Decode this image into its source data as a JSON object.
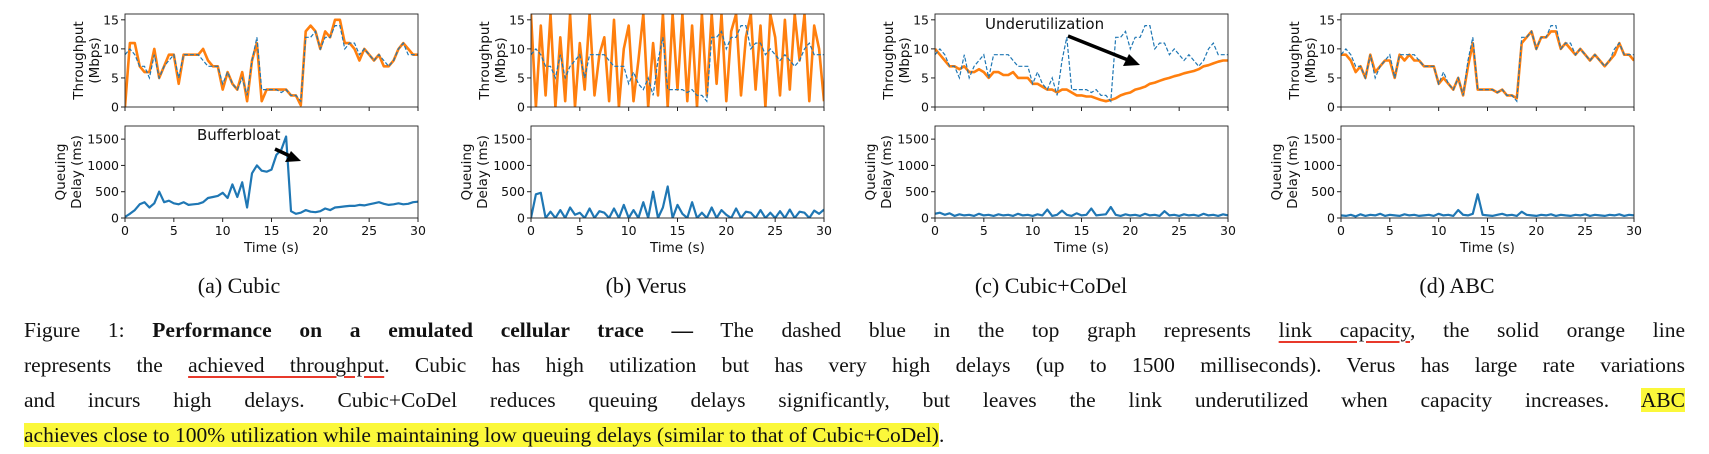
{
  "chart_data": {
    "type": "line",
    "x_step": 0.5,
    "xlim": [
      0,
      30
    ],
    "xticks": [
      0,
      5,
      10,
      15,
      20,
      25,
      30
    ],
    "xlabel": "Time (s)",
    "top_ylabel": [
      "Throughput",
      "(Mbps)"
    ],
    "top_ylim": [
      0,
      16
    ],
    "top_yticks": [
      0,
      5,
      10,
      15
    ],
    "bottom_ylabel": [
      "Queuing",
      "Delay (ms)"
    ],
    "bottom_ylim": [
      0,
      1750
    ],
    "bottom_yticks": [
      0,
      500,
      1000,
      1500
    ],
    "colors": {
      "capacity": "#1f77b4",
      "throughput": "#ff7f0e",
      "delay": "#1f77b4"
    },
    "series_legend": {
      "capacity": "link capacity (dashed blue)",
      "throughput": "achieved throughput (solid orange)"
    },
    "capacity": [
      9,
      10,
      9,
      7,
      7,
      5,
      9,
      5,
      7,
      8,
      9,
      5,
      9,
      9,
      9,
      9,
      8,
      7,
      7,
      7,
      4,
      6,
      4,
      3,
      5,
      2,
      8,
      12,
      3,
      3,
      3,
      3,
      2.5,
      3,
      2,
      2,
      1,
      12,
      12,
      13,
      10,
      12,
      12,
      14,
      14,
      10,
      11,
      11,
      9,
      10,
      9,
      8,
      9,
      8,
      7,
      8,
      10,
      11,
      9,
      9,
      9
    ],
    "panels": [
      {
        "caption": "(a) Cubic",
        "throughput": [
          0,
          11,
          11,
          7,
          6,
          6,
          10,
          5,
          7,
          9,
          9,
          4,
          9,
          9,
          9,
          9,
          10,
          8,
          7,
          7,
          3,
          6,
          4,
          3,
          6,
          1,
          8,
          11,
          1,
          3,
          3,
          3,
          3,
          3,
          2,
          2,
          0.3,
          13,
          14,
          13,
          10,
          13,
          12,
          15,
          15,
          11,
          11,
          10,
          8,
          10,
          9,
          8,
          9,
          7,
          7,
          8,
          10,
          11,
          10,
          9,
          9
        ],
        "delay": [
          20,
          80,
          150,
          260,
          300,
          200,
          280,
          500,
          300,
          330,
          280,
          260,
          300,
          250,
          260,
          270,
          300,
          380,
          400,
          420,
          480,
          380,
          640,
          400,
          680,
          200,
          850,
          1000,
          900,
          880,
          920,
          1200,
          1300,
          1550,
          130,
          80,
          100,
          150,
          120,
          110,
          130,
          180,
          150,
          200,
          210,
          220,
          230,
          230,
          250,
          240,
          260,
          280,
          300,
          270,
          250,
          260,
          280,
          260,
          270,
          300,
          310
        ],
        "annotation": "Bufferbloat"
      },
      {
        "caption": "(b) Verus",
        "throughput": [
          16,
          0,
          14,
          2,
          16,
          0,
          12,
          1,
          16,
          0,
          11,
          3,
          16,
          2,
          9,
          12,
          1,
          15,
          0,
          10,
          14,
          1,
          8,
          16,
          0,
          11,
          2,
          16,
          0,
          16,
          3,
          16,
          1,
          14,
          0,
          16,
          2,
          16,
          4,
          16,
          1,
          13,
          16,
          2,
          12,
          16,
          3,
          14,
          0,
          16,
          12,
          2,
          15,
          3,
          16,
          8,
          16,
          1,
          14,
          10,
          1
        ],
        "delay": [
          0,
          450,
          480,
          0,
          120,
          0,
          150,
          0,
          200,
          60,
          100,
          0,
          180,
          0,
          130,
          100,
          0,
          180,
          0,
          250,
          0,
          150,
          0,
          300,
          0,
          500,
          0,
          200,
          600,
          0,
          250,
          80,
          0,
          300,
          0,
          100,
          0,
          200,
          0,
          150,
          60,
          0,
          180,
          0,
          120,
          100,
          0,
          150,
          0,
          100,
          0,
          130,
          0,
          160,
          0,
          120,
          100,
          0,
          140,
          80,
          160
        ],
        "annotation": ""
      },
      {
        "caption": "(c) Cubic+CoDel",
        "throughput": [
          10,
          9,
          8,
          7,
          7,
          6.5,
          7,
          6,
          6,
          6.5,
          6,
          5,
          6,
          6,
          5.5,
          5.5,
          6,
          5,
          5,
          5,
          4,
          4,
          3.5,
          3,
          3,
          2.5,
          3,
          3,
          2.5,
          2,
          2,
          1.8,
          1.8,
          1.5,
          1.2,
          1,
          1.2,
          1.5,
          2,
          2.3,
          2.5,
          3,
          3.2,
          3.5,
          4,
          4.2,
          4.5,
          4.8,
          5,
          5.3,
          5.5,
          5.8,
          6,
          6.2,
          6.5,
          7,
          7.2,
          7.5,
          7.8,
          8,
          8
        ],
        "delay": [
          80,
          100,
          60,
          90,
          40,
          70,
          50,
          60,
          40,
          80,
          50,
          60,
          40,
          70,
          50,
          60,
          40,
          80,
          50,
          60,
          40,
          70,
          50,
          160,
          40,
          60,
          140,
          60,
          40,
          90,
          50,
          60,
          180,
          50,
          60,
          70,
          210,
          60,
          40,
          70,
          50,
          60,
          40,
          80,
          50,
          60,
          40,
          130,
          50,
          60,
          40,
          70,
          50,
          60,
          40,
          80,
          50,
          60,
          40,
          70,
          50
        ],
        "annotation": "Underutilization"
      },
      {
        "caption": "(d) ABC",
        "throughput": [
          9,
          9,
          8,
          6,
          7,
          5,
          9,
          6,
          7,
          8,
          8,
          5,
          9,
          8,
          9,
          8,
          8,
          7,
          7,
          7,
          4,
          5,
          4,
          3,
          5,
          2,
          7,
          11,
          3,
          3,
          3,
          3,
          2.5,
          3,
          2,
          2,
          1.5,
          11,
          12,
          13,
          10,
          12,
          12,
          13,
          13,
          10,
          11,
          10,
          9,
          10,
          9,
          8,
          9,
          8,
          7,
          8,
          9,
          11,
          9,
          9,
          8
        ],
        "delay": [
          50,
          40,
          60,
          30,
          70,
          40,
          60,
          50,
          80,
          40,
          60,
          50,
          40,
          70,
          50,
          60,
          40,
          50,
          60,
          40,
          80,
          50,
          60,
          40,
          150,
          60,
          50,
          80,
          450,
          60,
          50,
          40,
          60,
          80,
          50,
          60,
          40,
          120,
          60,
          50,
          40,
          60,
          50,
          70,
          40,
          60,
          50,
          40,
          60,
          50,
          70,
          40,
          60,
          50,
          40,
          60,
          50,
          70,
          40,
          60,
          50
        ],
        "annotation": ""
      }
    ]
  },
  "caption": {
    "label": "Figure 1:",
    "title": "Performance on a emulated cellular trace —",
    "l1a": " The dashed blue in the top graph represents ",
    "l1u": "link capacity",
    "l1b": ", the solid orange line",
    "l2a": "represents the ",
    "l2u": "achieved throughput",
    "l2b": ". Cubic has high utilization but has very high delays (up to 1500 milliseconds). Verus has large rate variations",
    "l3a": "and incurs high delays. Cubic+CoDel reduces queuing delays significantly, but leaves the link underutilized when capacity increases. ",
    "l3h": "ABC",
    "l4h": "achieves close to 100% utilization while maintaining low queuing delays (similar to that of Cubic+CoDel)",
    "l4b": "."
  }
}
